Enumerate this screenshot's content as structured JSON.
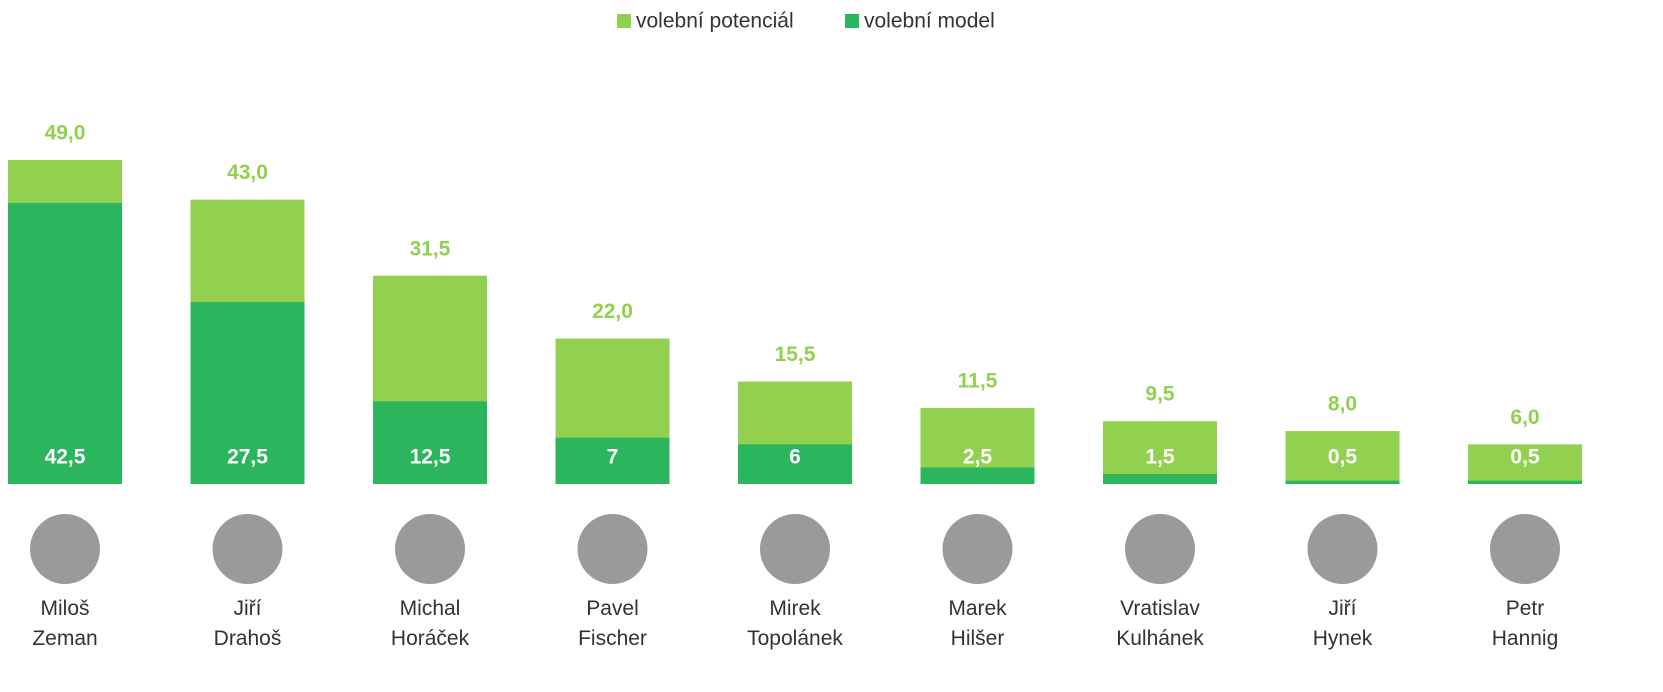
{
  "chart_data": {
    "type": "bar",
    "categories": [
      "Miloš Zeman",
      "Jiří Drahoš",
      "Michal Horáček",
      "Pavel Fischer",
      "Mirek Topolánek",
      "Marek Hilšer",
      "Vratislav Kulhánek",
      "Jiří Hynek",
      "Petr Hannig"
    ],
    "series": [
      {
        "name": "volební potenciál",
        "color": "#92d050",
        "values": [
          49,
          43,
          31.5,
          22,
          15.5,
          11.5,
          9.5,
          8,
          6
        ],
        "value_labels": [
          "49,0",
          "43,0",
          "31,5",
          "22,0",
          "15,5",
          "11,5",
          "9,5",
          "8,0",
          "6,0"
        ]
      },
      {
        "name": "volební model",
        "color": "#2bb55c",
        "values": [
          42.5,
          27.5,
          12.5,
          7,
          6,
          2.5,
          1.5,
          0.5,
          0.5
        ],
        "value_labels": [
          "42,5",
          "27,5",
          "12,5",
          "7",
          "6",
          "2,5",
          "1,5",
          "0,5",
          "0,5"
        ]
      }
    ],
    "legend": "top"
  }
}
